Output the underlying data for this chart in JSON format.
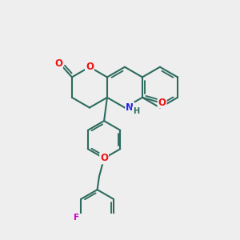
{
  "bg_color": "#eeeeee",
  "bond_color": "#2d6b5e",
  "bond_width": 1.5,
  "atom_colors": {
    "O": "#ee1111",
    "N": "#2222ee",
    "F": "#cc00cc"
  },
  "font_size": 8.5
}
